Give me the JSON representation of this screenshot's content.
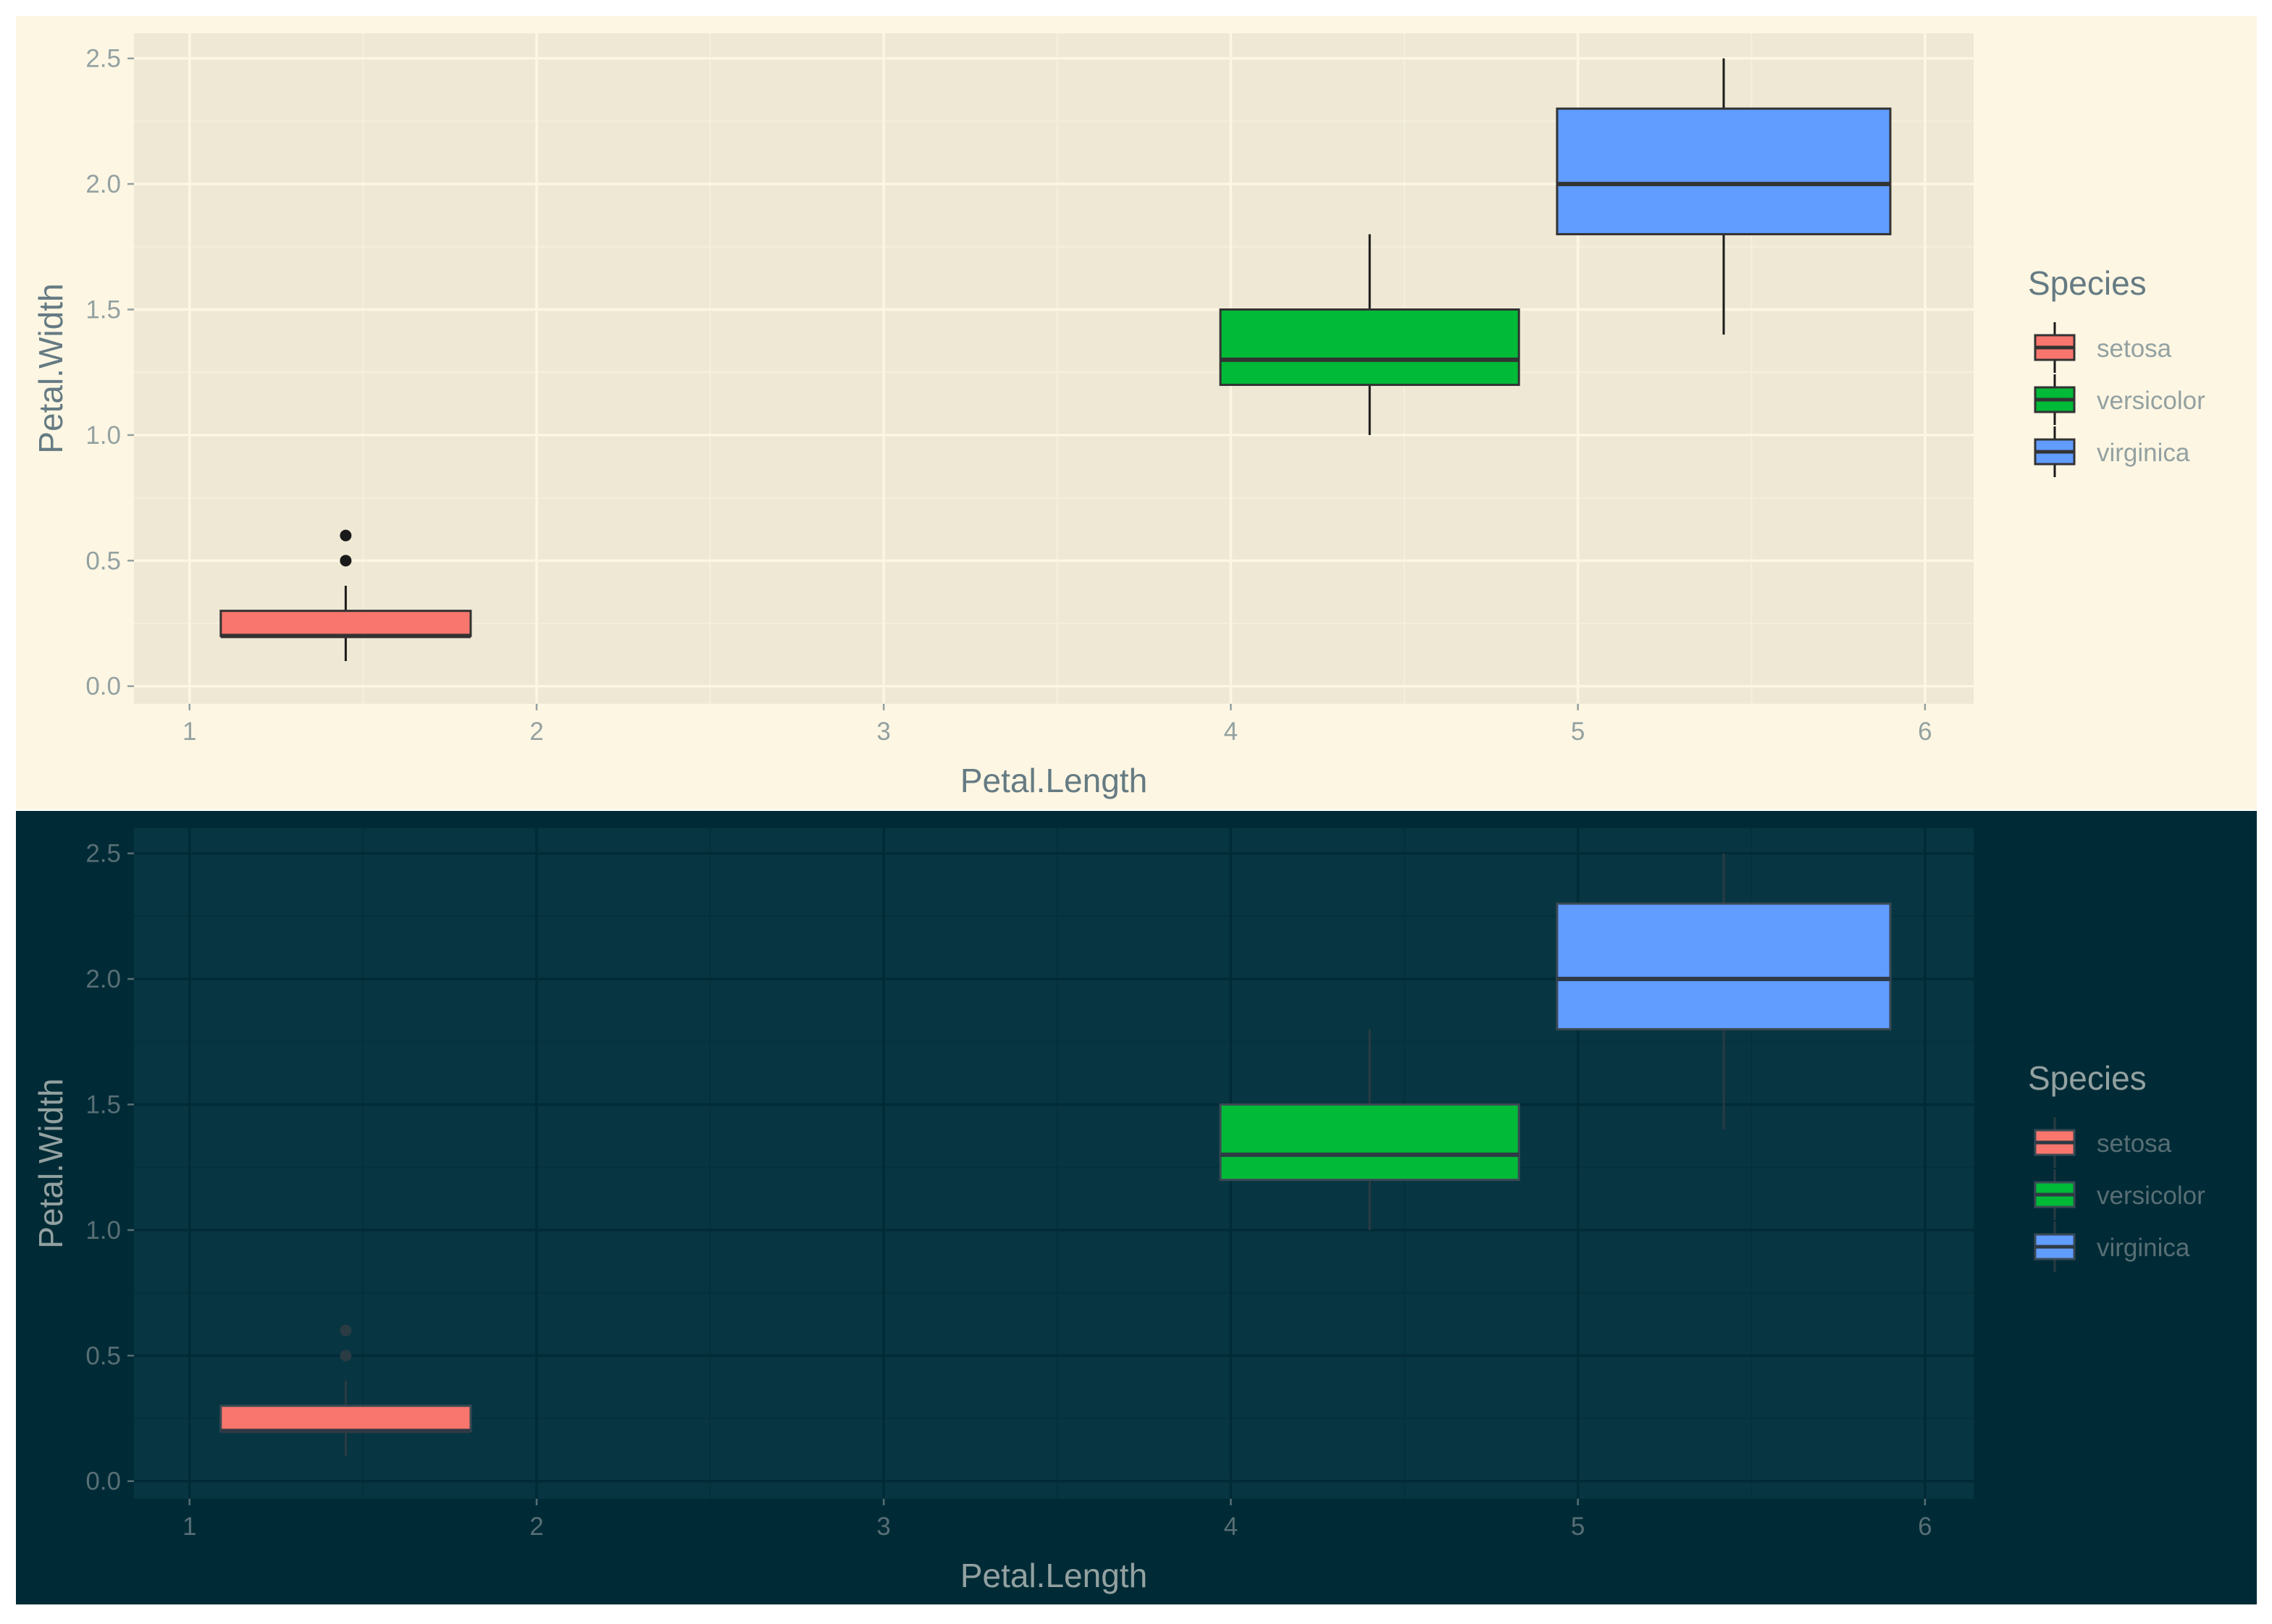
{
  "chart_data": [
    {
      "type": "boxplot",
      "theme": "solarized-light",
      "xlabel": "Petal.Length",
      "ylabel": "Petal.Width",
      "xlim": [
        0.84,
        6.14
      ],
      "ylim": [
        -0.07,
        2.6
      ],
      "x_ticks": [
        1,
        2,
        3,
        4,
        5,
        6
      ],
      "y_ticks": [
        0.0,
        0.5,
        1.0,
        1.5,
        2.0,
        2.5
      ],
      "grid": true,
      "legend": {
        "title": "Species",
        "position": "right"
      },
      "series": [
        {
          "name": "setosa",
          "color": "#F8766D",
          "x_min": 1.09,
          "x_max": 1.81,
          "x_center": 1.45,
          "whisker_low": 0.1,
          "q1": 0.2,
          "median": 0.2,
          "q3": 0.3,
          "whisker_high": 0.4,
          "outliers": [
            0.5,
            0.6
          ]
        },
        {
          "name": "versicolor",
          "color": "#00BA38",
          "x_min": 3.97,
          "x_max": 4.83,
          "x_center": 4.4,
          "whisker_low": 1.0,
          "q1": 1.2,
          "median": 1.3,
          "q3": 1.5,
          "whisker_high": 1.8,
          "outliers": []
        },
        {
          "name": "virginica",
          "color": "#619CFF",
          "x_min": 4.94,
          "x_max": 5.9,
          "x_center": 5.42,
          "whisker_low": 1.4,
          "q1": 1.8,
          "median": 2.0,
          "q3": 2.3,
          "whisker_high": 2.5,
          "outliers": []
        }
      ]
    },
    {
      "type": "boxplot",
      "theme": "solarized-dark",
      "xlabel": "Petal.Length",
      "ylabel": "Petal.Width",
      "xlim": [
        0.84,
        6.14
      ],
      "ylim": [
        -0.07,
        2.6
      ],
      "x_ticks": [
        1,
        2,
        3,
        4,
        5,
        6
      ],
      "y_ticks": [
        0.0,
        0.5,
        1.0,
        1.5,
        2.0,
        2.5
      ],
      "grid": true,
      "legend": {
        "title": "Species",
        "position": "right"
      },
      "series": [
        {
          "name": "setosa",
          "color": "#F8766D",
          "x_min": 1.09,
          "x_max": 1.81,
          "x_center": 1.45,
          "whisker_low": 0.1,
          "q1": 0.2,
          "median": 0.2,
          "q3": 0.3,
          "whisker_high": 0.4,
          "outliers": [
            0.5,
            0.6
          ]
        },
        {
          "name": "versicolor",
          "color": "#00BA38",
          "x_min": 3.97,
          "x_max": 4.83,
          "x_center": 4.4,
          "whisker_low": 1.0,
          "q1": 1.2,
          "median": 1.3,
          "q3": 1.5,
          "whisker_high": 1.8,
          "outliers": []
        },
        {
          "name": "virginica",
          "color": "#619CFF",
          "x_min": 4.94,
          "x_max": 5.9,
          "x_center": 5.42,
          "whisker_low": 1.4,
          "q1": 1.8,
          "median": 2.0,
          "q3": 2.3,
          "whisker_high": 2.5,
          "outliers": []
        }
      ]
    }
  ],
  "themes": {
    "solarized-light": {
      "background": "#FDF6E3",
      "panel": "#EEE8D5",
      "grid_major": "#FDF6E3",
      "grid_minor": "#F5EFDD",
      "axis_text": "#93A1A1",
      "title_text": "#657B83",
      "box_outline": "#333333",
      "median_line": "#333333",
      "whisker": "#1A1A1A",
      "outlier": "#1A1A1A"
    },
    "solarized-dark": {
      "background": "#002B36",
      "panel": "#073642",
      "grid_major": "#002B36",
      "grid_minor": "#05303C",
      "axis_text": "#586E75",
      "title_text": "#93A1A1",
      "box_outline": "#3A4A55",
      "median_line": "#2E3A44",
      "whisker": "#2A3B44",
      "outlier": "#2A3B44"
    }
  }
}
